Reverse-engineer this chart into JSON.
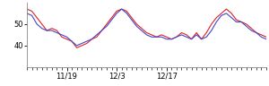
{
  "red_y": [
    57,
    56,
    53,
    50,
    47,
    48,
    47,
    44,
    43,
    42,
    39,
    40,
    41,
    43,
    44,
    47,
    50,
    53,
    56,
    57,
    56,
    53,
    50,
    48,
    46,
    45,
    44,
    45,
    44,
    43,
    44,
    46,
    45,
    43,
    46,
    43,
    46,
    50,
    53,
    55,
    57,
    55,
    52,
    51,
    50,
    48,
    46,
    45,
    44
  ],
  "blue_y": [
    55,
    54,
    50,
    48,
    47,
    47,
    46,
    45,
    44,
    42,
    40,
    41,
    42,
    43,
    45,
    47,
    49,
    52,
    55,
    57,
    55,
    52,
    49,
    47,
    45,
    44,
    44,
    44,
    43,
    43,
    44,
    45,
    44,
    43,
    45,
    43,
    44,
    47,
    51,
    54,
    55,
    53,
    51,
    51,
    49,
    47,
    46,
    44,
    43
  ],
  "ylim": [
    30,
    60
  ],
  "yticks": [
    40,
    50
  ],
  "xtick_major_positions": [
    8,
    18,
    28,
    38
  ],
  "xtick_major_labels": [
    "11/19",
    "12/3",
    "12/17",
    ""
  ],
  "red_color": "#dd2222",
  "blue_color": "#4444cc",
  "linewidth": 0.8,
  "bg_color": "#ffffff",
  "tick_label_fontsize": 6,
  "n_points": 49
}
